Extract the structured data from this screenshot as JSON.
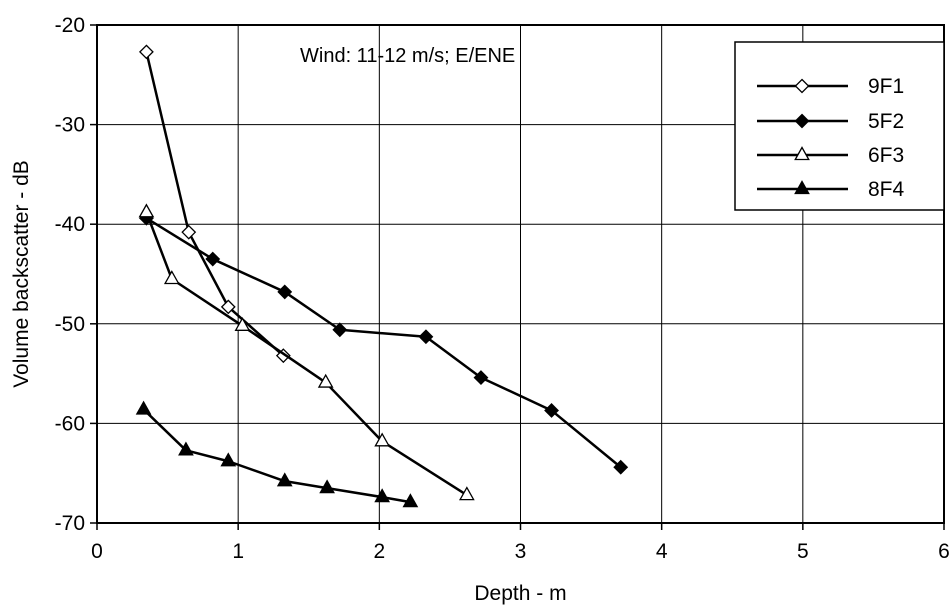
{
  "chart_data": {
    "type": "line",
    "annotation": "Wind:  11-12 m/s; E/ENE",
    "xlabel": "Depth - m",
    "ylabel": "Volume backscatter - dB",
    "xlim": [
      0,
      6
    ],
    "ylim": [
      -70,
      -20
    ],
    "xticks": [
      0,
      1,
      2,
      3,
      4,
      5,
      6
    ],
    "yticks": [
      -70,
      -60,
      -50,
      -40,
      -30,
      -20
    ],
    "grid": true,
    "legend_position": "top-right",
    "series": [
      {
        "name": "9F1",
        "marker": "open-diamond",
        "x": [
          0.35,
          0.65,
          0.93,
          1.32
        ],
        "y": [
          -22.7,
          -40.8,
          -48.3,
          -53.2
        ]
      },
      {
        "name": "5F2",
        "marker": "filled-diamond",
        "x": [
          0.35,
          0.82,
          1.33,
          1.72,
          2.33,
          2.72,
          3.22,
          3.71
        ],
        "y": [
          -39.4,
          -43.5,
          -46.8,
          -50.6,
          -51.3,
          -55.4,
          -58.7,
          -64.4
        ]
      },
      {
        "name": "6F3",
        "marker": "open-triangle",
        "x": [
          0.35,
          0.53,
          1.03,
          1.62,
          2.02,
          2.62
        ],
        "y": [
          -38.8,
          -45.5,
          -50.2,
          -55.9,
          -61.8,
          -67.2
        ]
      },
      {
        "name": "8F4",
        "marker": "filled-triangle",
        "x": [
          0.33,
          0.63,
          0.93,
          1.33,
          1.63,
          2.02,
          2.22
        ],
        "y": [
          -58.6,
          -62.7,
          -63.8,
          -65.8,
          -66.5,
          -67.4,
          -67.9
        ]
      }
    ]
  }
}
